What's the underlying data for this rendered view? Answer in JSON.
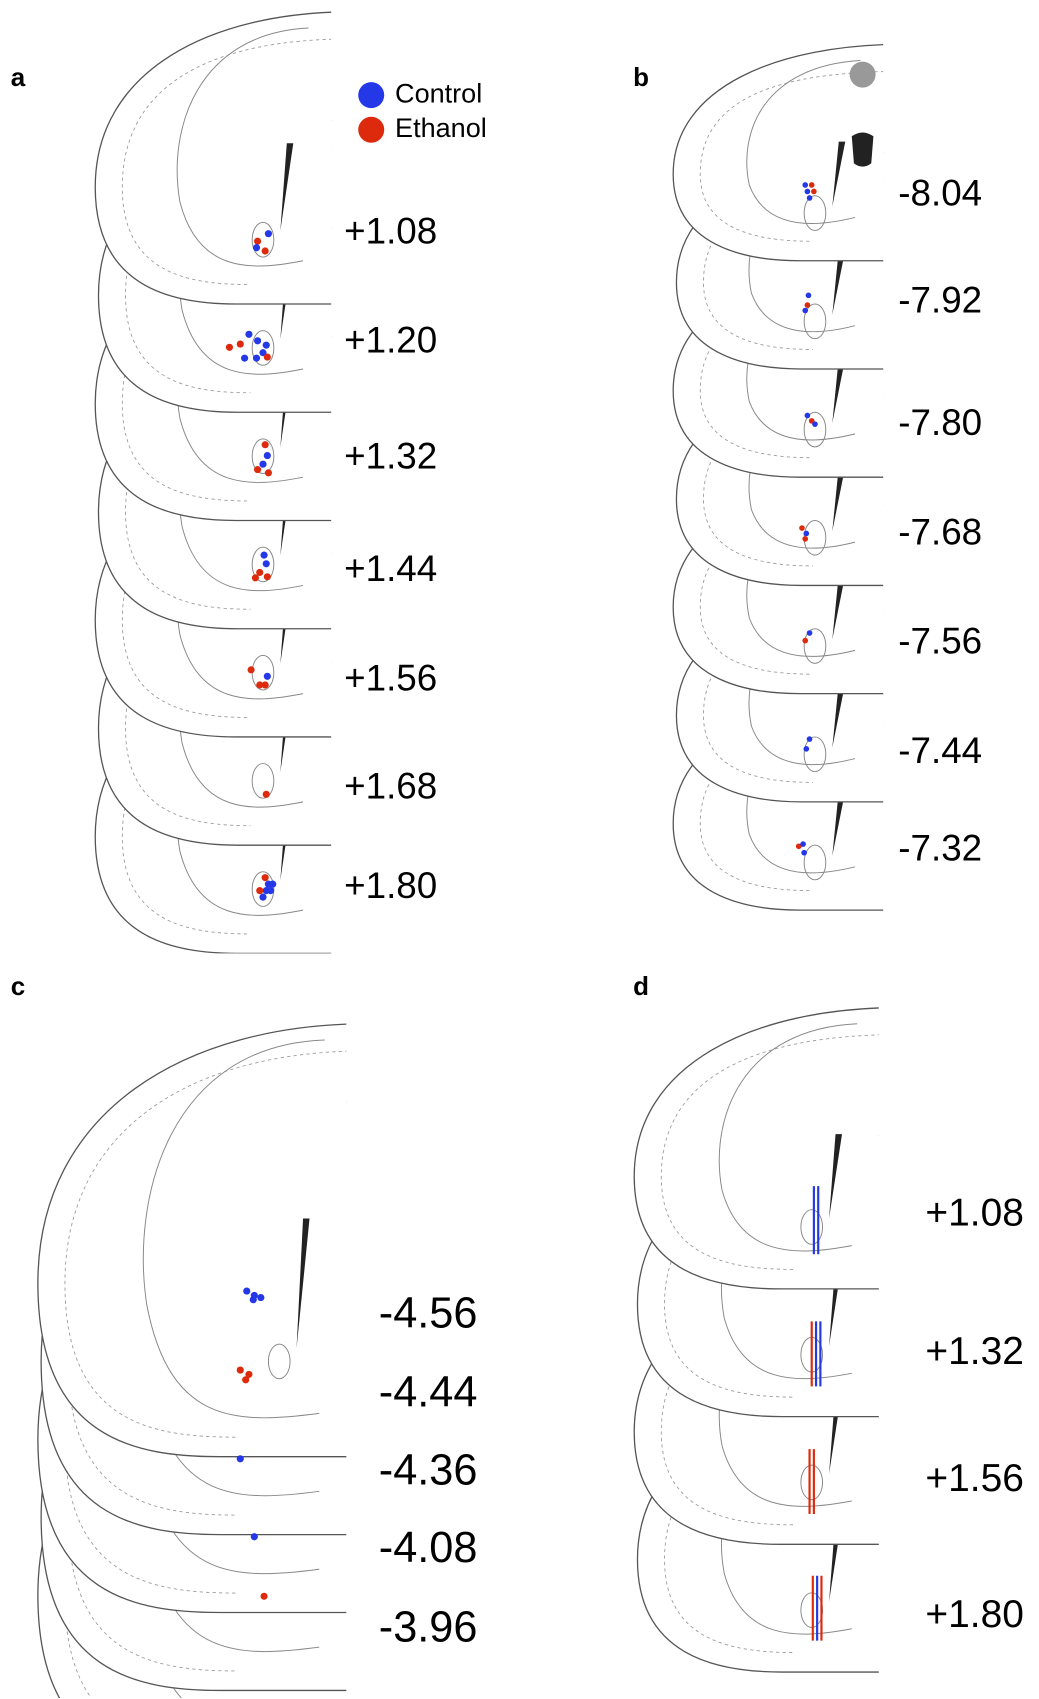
{
  "panels": [
    {
      "label": "a",
      "sections": [
        "+1.08",
        "+1.20",
        "+1.32",
        "+1.44",
        "+1.56",
        "+1.68",
        "+1.80"
      ]
    },
    {
      "label": "b",
      "sections": [
        "-8.04",
        "-7.92",
        "-7.80",
        "-7.68",
        "-7.56",
        "-7.44",
        "-7.32"
      ]
    },
    {
      "label": "c",
      "sections": [
        "-4.56",
        "-4.44",
        "-4.36",
        "-4.08",
        "-3.96"
      ]
    },
    {
      "label": "d",
      "sections": [
        "+1.08",
        "+1.32",
        "+1.56",
        "+1.80"
      ]
    }
  ],
  "legend": [
    {
      "name": "Control",
      "color": "#2438e8"
    },
    {
      "name": "Ethanol",
      "color": "#dd2a0c"
    }
  ]
}
